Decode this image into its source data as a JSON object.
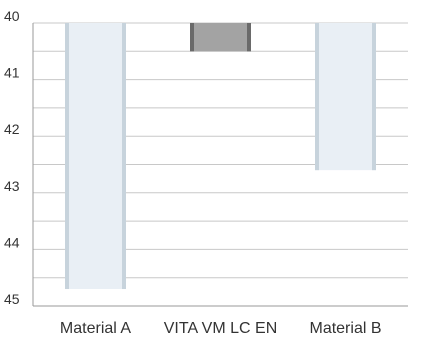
{
  "title": "",
  "chart_data": {
    "type": "bar",
    "orientation": "vertical",
    "y_axis_inverted": true,
    "categories": [
      "Material A",
      "VITA VM LC EN",
      "Material B"
    ],
    "values": [
      44.7,
      40.5,
      42.6
    ],
    "bar_colors": [
      "#e9eff5",
      "#a3a3a3",
      "#e9eff5"
    ],
    "bar_edge_colors": [
      "#c7d3dc",
      "#6a6a6a",
      "#c7d3dc"
    ],
    "ylim": [
      40,
      45
    ],
    "yticks": [
      40,
      41,
      42,
      43,
      44,
      45
    ],
    "minor_gridlines": true,
    "grid": true,
    "xlabel": "",
    "ylabel": ""
  }
}
